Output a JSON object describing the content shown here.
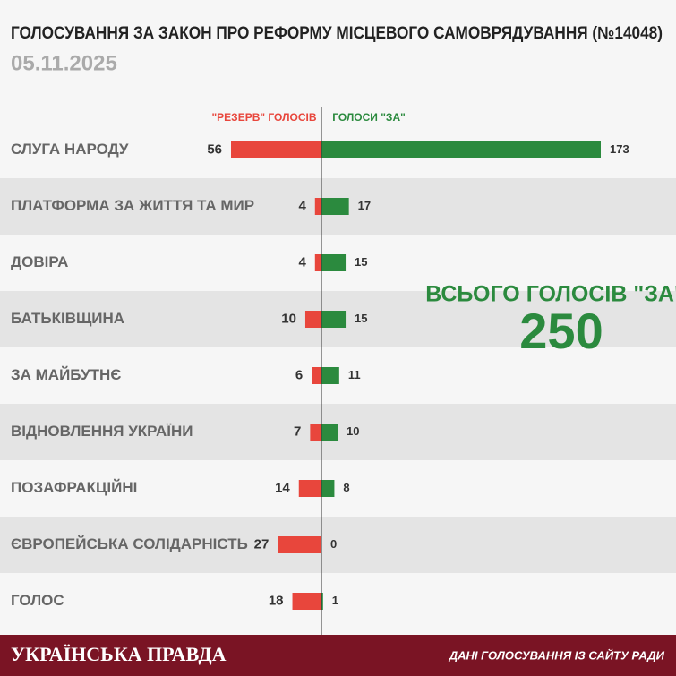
{
  "chart_data": {
    "type": "bar",
    "title": "ГОЛОСУВАННЯ ЗА ЗАКОН ПРО РЕФОРМУ МІСЦЕВОГО САМОВРЯДУВАННЯ (№14048)",
    "subtitle": "05.11.2025",
    "categories": [
      "СЛУГА НАРОДУ",
      "ПЛАТФОРМА ЗА ЖИТТЯ ТА МИР",
      "ДОВІРА",
      "БАТЬКІВЩИНА",
      "ЗА МАЙБУТНЄ",
      "ВІДНОВЛЕННЯ УКРАЇНИ",
      "ПОЗАФРАКЦІЙНІ",
      "ЄВРОПЕЙСЬКА СОЛІДАРНІСТЬ",
      "ГОЛОС"
    ],
    "series": [
      {
        "name": "\"РЕЗЕРВ\" ГОЛОСІВ",
        "color": "#e8463c",
        "values": [
          56,
          4,
          4,
          10,
          6,
          7,
          14,
          27,
          18
        ]
      },
      {
        "name": "ГОЛОСИ \"ЗА\"",
        "color": "#2b8a3e",
        "values": [
          173,
          17,
          15,
          15,
          11,
          10,
          8,
          0,
          1
        ]
      }
    ],
    "total": {
      "label": "ВСЬОГО ГОЛОСІВ \"ЗА\"",
      "value": 250
    },
    "brand": "УКРАЇНСЬКА ПРАВДА",
    "source": "ДАНІ ГОЛОСУВАННЯ ІЗ САЙТУ РАДИ"
  }
}
